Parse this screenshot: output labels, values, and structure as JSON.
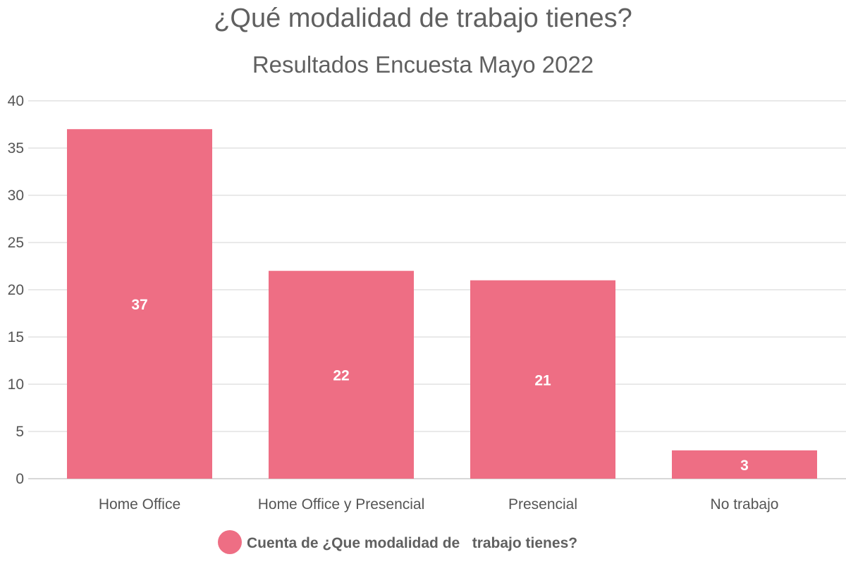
{
  "chart_data": {
    "type": "bar",
    "title": "¿Qué modalidad de trabajo tienes?",
    "subtitle": "Resultados Encuesta Mayo 2022",
    "categories": [
      "Home Office",
      "Home Office y Presencial",
      "Presencial",
      "No trabajo"
    ],
    "series": [
      {
        "name": "Cuenta de ¿Que modalidad de   trabajo tienes?",
        "values": [
          37,
          22,
          21,
          3
        ],
        "color": "#ee6e84"
      }
    ],
    "xlabel": "",
    "ylabel": "",
    "ylim": [
      0,
      40
    ],
    "yticks": [
      0,
      5,
      10,
      15,
      20,
      25,
      30,
      35,
      40
    ],
    "grid": true,
    "legend_position": "bottom-center",
    "data_labels": true
  }
}
